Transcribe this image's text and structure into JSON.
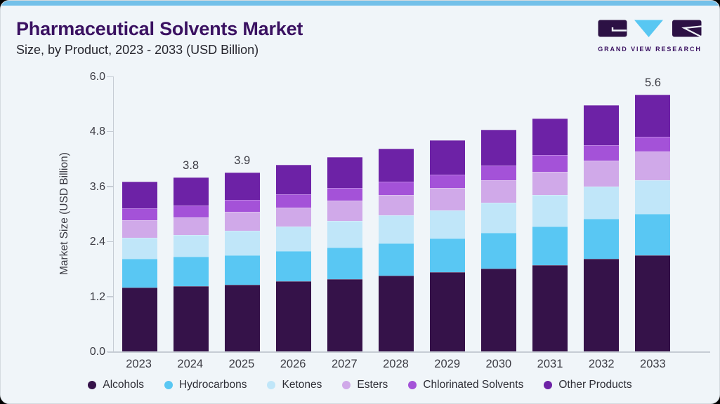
{
  "theme": {
    "page_bg": "#000000",
    "card_bg": "#f0f5f9",
    "card_border": "#d5dbe0",
    "accent_strip": "#73c0e9",
    "title_color": "#3a1161",
    "subtitle_color": "#26262e",
    "axis_text": "#3c3c44",
    "axis_line": "#c6ccd4",
    "legend_text": "#2e2e36",
    "logo_purple": "#2c1144",
    "logo_blue": "#58c7f2"
  },
  "header": {
    "title": "Pharmaceutical Solvents Market",
    "subtitle": "Size, by Product, 2023 - 2033 (USD Billion)",
    "brand": "GRAND VIEW RESEARCH"
  },
  "chart_data": {
    "type": "bar",
    "stacked": true,
    "title": "Pharmaceutical Solvents Market Size, by Product, 2023 - 2033 (USD Billion)",
    "xlabel": "",
    "ylabel": "Market Size (USD Billion)",
    "ylim": [
      0,
      6.0
    ],
    "yticks": [
      0.0,
      1.2,
      2.4,
      3.6,
      4.8,
      6.0
    ],
    "grid": false,
    "legend_position": "bottom",
    "categories": [
      "2023",
      "2024",
      "2025",
      "2026",
      "2027",
      "2028",
      "2029",
      "2030",
      "2031",
      "2032",
      "2033"
    ],
    "bar_value_labels": [
      "",
      "3.8",
      "3.9",
      "",
      "",
      "",
      "",
      "",
      "",
      "",
      "5.6"
    ],
    "totals": [
      3.7,
      3.8,
      3.9,
      4.08,
      4.24,
      4.42,
      4.61,
      4.84,
      5.09,
      5.38,
      5.6
    ],
    "series": [
      {
        "name": "Alcohols",
        "color": "#351249",
        "values": [
          1.4,
          1.42,
          1.46,
          1.53,
          1.57,
          1.65,
          1.73,
          1.8,
          1.89,
          2.02,
          2.09
        ]
      },
      {
        "name": "Hydrocarbons",
        "color": "#59c7f3",
        "values": [
          0.62,
          0.64,
          0.64,
          0.66,
          0.7,
          0.71,
          0.74,
          0.79,
          0.84,
          0.87,
          0.91
        ]
      },
      {
        "name": "Ketones",
        "color": "#c0e6f9",
        "values": [
          0.46,
          0.48,
          0.54,
          0.54,
          0.57,
          0.61,
          0.61,
          0.65,
          0.68,
          0.71,
          0.73
        ]
      },
      {
        "name": "Esters",
        "color": "#d0a9e9",
        "values": [
          0.39,
          0.39,
          0.4,
          0.41,
          0.45,
          0.44,
          0.49,
          0.49,
          0.51,
          0.57,
          0.63
        ]
      },
      {
        "name": "Chlorinated Solvents",
        "color": "#a452d8",
        "values": [
          0.25,
          0.26,
          0.27,
          0.29,
          0.27,
          0.3,
          0.29,
          0.32,
          0.36,
          0.33,
          0.32
        ]
      },
      {
        "name": "Other Products",
        "color": "#6d22a6",
        "values": [
          0.58,
          0.61,
          0.59,
          0.65,
          0.68,
          0.71,
          0.75,
          0.79,
          0.81,
          0.88,
          0.92
        ]
      }
    ]
  }
}
